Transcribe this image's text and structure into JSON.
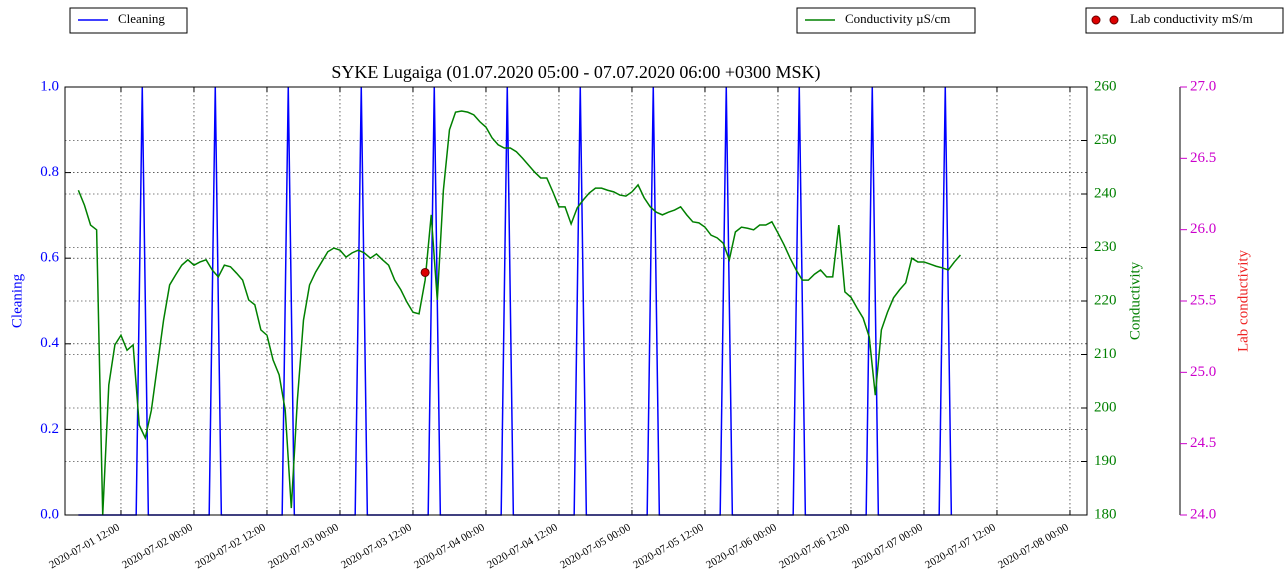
{
  "chart_data": {
    "type": "line",
    "title": "SYKE Lugaiga (01.07.2020 05:00 - 07.07.2020 06:00 +0300 MSK)",
    "y_label": "Cleaning",
    "y2_label": "Conductivity",
    "y3_label": "Lab conductivity",
    "grid": true,
    "xlim": [
      "2020-07-01 02:48",
      "2020-07-08 02:48"
    ],
    "xticks": [
      "2020-07-01 12:00",
      "2020-07-02 00:00",
      "2020-07-02 12:00",
      "2020-07-03 00:00",
      "2020-07-03 12:00",
      "2020-07-04 00:00",
      "2020-07-04 12:00",
      "2020-07-05 00:00",
      "2020-07-05 12:00",
      "2020-07-06 00:00",
      "2020-07-06 12:00",
      "2020-07-07 00:00",
      "2020-07-07 12:00",
      "2020-07-08 00:00"
    ],
    "ylim": [
      0,
      1
    ],
    "yticks": [
      {
        "value": 0,
        "label": "0.0"
      },
      0.2,
      0.4,
      0.6,
      0.8,
      {
        "value": 1,
        "label": "1.0"
      }
    ],
    "y2lim": [
      180,
      260
    ],
    "y2ticks": [
      180,
      190,
      200,
      210,
      220,
      230,
      240,
      250,
      260
    ],
    "y3lim": [
      24,
      27
    ],
    "y3ticks": [
      {
        "value": 24,
        "label": "24.0"
      },
      24.5,
      {
        "value": 25,
        "label": "25.0"
      },
      25.5,
      {
        "value": 26,
        "label": "26.0"
      },
      26.5,
      {
        "value": 27,
        "label": "27.0"
      }
    ],
    "series": [
      {
        "name": "Cleaning",
        "color": "#0000ff",
        "x": [
          "2020-07-01 05:00",
          "2020-07-01 14:30",
          "2020-07-01 15:30",
          "2020-07-01 16:30",
          "2020-07-02 02:30",
          "2020-07-02 03:30",
          "2020-07-02 04:30",
          "2020-07-02 14:30",
          "2020-07-02 15:30",
          "2020-07-02 16:30",
          "2020-07-03 02:30",
          "2020-07-03 03:30",
          "2020-07-03 04:30",
          "2020-07-03 14:30",
          "2020-07-03 15:30",
          "2020-07-03 16:30",
          "2020-07-04 02:30",
          "2020-07-04 03:30",
          "2020-07-04 04:30",
          "2020-07-04 14:30",
          "2020-07-04 15:30",
          "2020-07-04 16:30",
          "2020-07-05 02:30",
          "2020-07-05 03:30",
          "2020-07-05 04:30",
          "2020-07-05 14:30",
          "2020-07-05 15:30",
          "2020-07-05 16:30",
          "2020-07-06 02:30",
          "2020-07-06 03:30",
          "2020-07-06 04:30",
          "2020-07-06 14:30",
          "2020-07-06 15:30",
          "2020-07-06 16:30",
          "2020-07-07 02:30",
          "2020-07-07 03:30",
          "2020-07-07 04:30"
        ],
        "values": [
          0,
          0,
          1,
          0,
          0,
          1,
          0,
          0,
          1,
          0,
          0,
          1,
          0,
          0,
          1,
          0,
          0,
          1,
          0,
          0,
          1,
          0,
          0,
          1,
          0,
          0,
          1,
          0,
          0,
          1,
          0,
          0,
          1,
          0,
          0,
          1,
          0
        ]
      },
      {
        "name": "Conductivity µS/cm",
        "color": "#008000",
        "axis": "y2",
        "x": [
          "2020-07-01 05:00",
          "2020-07-01 06:00",
          "2020-07-01 07:00",
          "2020-07-01 08:00",
          "2020-07-01 09:00",
          "2020-07-01 10:00",
          "2020-07-01 11:00",
          "2020-07-01 12:00",
          "2020-07-01 13:00",
          "2020-07-01 14:00",
          "2020-07-01 15:00",
          "2020-07-01 16:00",
          "2020-07-01 17:00",
          "2020-07-01 18:00",
          "2020-07-01 19:00",
          "2020-07-01 20:00",
          "2020-07-01 21:00",
          "2020-07-01 22:00",
          "2020-07-01 23:00",
          "2020-07-02 00:00",
          "2020-07-02 01:00",
          "2020-07-02 02:00",
          "2020-07-02 03:00",
          "2020-07-02 04:00",
          "2020-07-02 05:00",
          "2020-07-02 06:00",
          "2020-07-02 07:00",
          "2020-07-02 08:00",
          "2020-07-02 09:00",
          "2020-07-02 10:00",
          "2020-07-02 11:00",
          "2020-07-02 12:00",
          "2020-07-02 13:00",
          "2020-07-02 14:00",
          "2020-07-02 15:00",
          "2020-07-02 16:00",
          "2020-07-02 17:00",
          "2020-07-02 18:00",
          "2020-07-02 19:00",
          "2020-07-02 20:00",
          "2020-07-02 21:00",
          "2020-07-02 22:00",
          "2020-07-02 23:00",
          "2020-07-03 00:00",
          "2020-07-03 01:00",
          "2020-07-03 02:00",
          "2020-07-03 03:00",
          "2020-07-03 04:00",
          "2020-07-03 05:00",
          "2020-07-03 06:00",
          "2020-07-03 07:00",
          "2020-07-03 08:00",
          "2020-07-03 09:00",
          "2020-07-03 10:00",
          "2020-07-03 11:00",
          "2020-07-03 12:00",
          "2020-07-03 13:00",
          "2020-07-03 14:00",
          "2020-07-03 15:00",
          "2020-07-03 16:00",
          "2020-07-03 17:00",
          "2020-07-03 18:00",
          "2020-07-03 19:00",
          "2020-07-03 20:00",
          "2020-07-03 21:00",
          "2020-07-03 22:00",
          "2020-07-03 23:00",
          "2020-07-04 00:00",
          "2020-07-04 01:00",
          "2020-07-04 02:00",
          "2020-07-04 03:00",
          "2020-07-04 04:00",
          "2020-07-04 05:00",
          "2020-07-04 06:00",
          "2020-07-04 07:00",
          "2020-07-04 08:00",
          "2020-07-04 09:00",
          "2020-07-04 10:00",
          "2020-07-04 11:00",
          "2020-07-04 12:00",
          "2020-07-04 13:00",
          "2020-07-04 14:00",
          "2020-07-04 15:00",
          "2020-07-04 16:00",
          "2020-07-04 17:00",
          "2020-07-04 18:00",
          "2020-07-04 19:00",
          "2020-07-04 20:00",
          "2020-07-04 21:00",
          "2020-07-04 22:00",
          "2020-07-04 23:00",
          "2020-07-05 00:00",
          "2020-07-05 01:00",
          "2020-07-05 02:00",
          "2020-07-05 03:00",
          "2020-07-05 04:00",
          "2020-07-05 05:00",
          "2020-07-05 06:00",
          "2020-07-05 07:00",
          "2020-07-05 08:00",
          "2020-07-05 09:00",
          "2020-07-05 10:00",
          "2020-07-05 11:00",
          "2020-07-05 12:00",
          "2020-07-05 13:00",
          "2020-07-05 14:00",
          "2020-07-05 15:00",
          "2020-07-05 16:00",
          "2020-07-05 17:00",
          "2020-07-05 18:00",
          "2020-07-05 19:00",
          "2020-07-05 20:00",
          "2020-07-05 21:00",
          "2020-07-05 22:00",
          "2020-07-05 23:00",
          "2020-07-06 00:00",
          "2020-07-06 01:00",
          "2020-07-06 02:00",
          "2020-07-06 03:00",
          "2020-07-06 04:00",
          "2020-07-06 05:00",
          "2020-07-06 06:00",
          "2020-07-06 07:00",
          "2020-07-06 08:00",
          "2020-07-06 09:00",
          "2020-07-06 10:00",
          "2020-07-06 11:00",
          "2020-07-06 12:00",
          "2020-07-06 13:00",
          "2020-07-06 14:00",
          "2020-07-06 15:00",
          "2020-07-06 16:00",
          "2020-07-06 17:00",
          "2020-07-06 18:00",
          "2020-07-06 19:00",
          "2020-07-06 20:00",
          "2020-07-06 21:00",
          "2020-07-06 22:00",
          "2020-07-06 23:00",
          "2020-07-07 00:00",
          "2020-07-07 01:00",
          "2020-07-07 02:00",
          "2020-07-07 03:00",
          "2020-07-07 04:00",
          "2020-07-07 05:00",
          "2020-07-07 06:00"
        ],
        "values": [
          240.7,
          237.9,
          234.2,
          233.3,
          180.0,
          204.3,
          211.8,
          213.6,
          210.8,
          211.8,
          196.8,
          194.4,
          199.6,
          208.0,
          216.4,
          223.0,
          224.9,
          226.7,
          227.7,
          226.7,
          227.3,
          227.7,
          225.8,
          224.5,
          226.7,
          226.4,
          225.2,
          223.9,
          220.2,
          219.3,
          214.6,
          213.6,
          209.0,
          206.2,
          199.6,
          181.3,
          201.5,
          216.4,
          223.0,
          225.4,
          227.3,
          229.2,
          229.9,
          229.5,
          228.2,
          229.0,
          229.5,
          229.0,
          228.0,
          228.8,
          227.7,
          226.7,
          223.9,
          222.1,
          219.8,
          217.9,
          217.6,
          223.9,
          236.1,
          220.2,
          240.7,
          252.0,
          255.3,
          255.5,
          255.3,
          254.8,
          253.5,
          252.5,
          250.5,
          249.2,
          248.6,
          248.6,
          247.9,
          246.7,
          245.4,
          244.1,
          243.0,
          243.0,
          240.4,
          237.6,
          237.6,
          234.4,
          237.4,
          238.9,
          240.2,
          241.1,
          241.1,
          240.7,
          240.4,
          239.8,
          239.6,
          240.4,
          241.7,
          239.3,
          237.6,
          236.6,
          236.1,
          236.6,
          237.0,
          237.6,
          236.1,
          234.8,
          234.6,
          233.8,
          232.3,
          231.8,
          230.8,
          227.7,
          232.9,
          233.8,
          233.6,
          233.3,
          234.2,
          234.2,
          234.8,
          232.7,
          230.5,
          228.0,
          225.8,
          223.9,
          223.9,
          225.0,
          225.8,
          224.5,
          224.5,
          234.2,
          221.7,
          220.7,
          218.7,
          216.8,
          213.3,
          202.4,
          214.6,
          217.9,
          220.6,
          222.1,
          223.4,
          228.0,
          227.3,
          227.3,
          226.9,
          226.5,
          226.2,
          225.8,
          227.3,
          228.6
        ]
      },
      {
        "name": "Lab conductivity mS/m",
        "color": "#dd0000",
        "axis": "y3",
        "marker": "o",
        "x": [
          "2020-07-03 14:00"
        ],
        "values": [
          25.7
        ]
      }
    ]
  }
}
